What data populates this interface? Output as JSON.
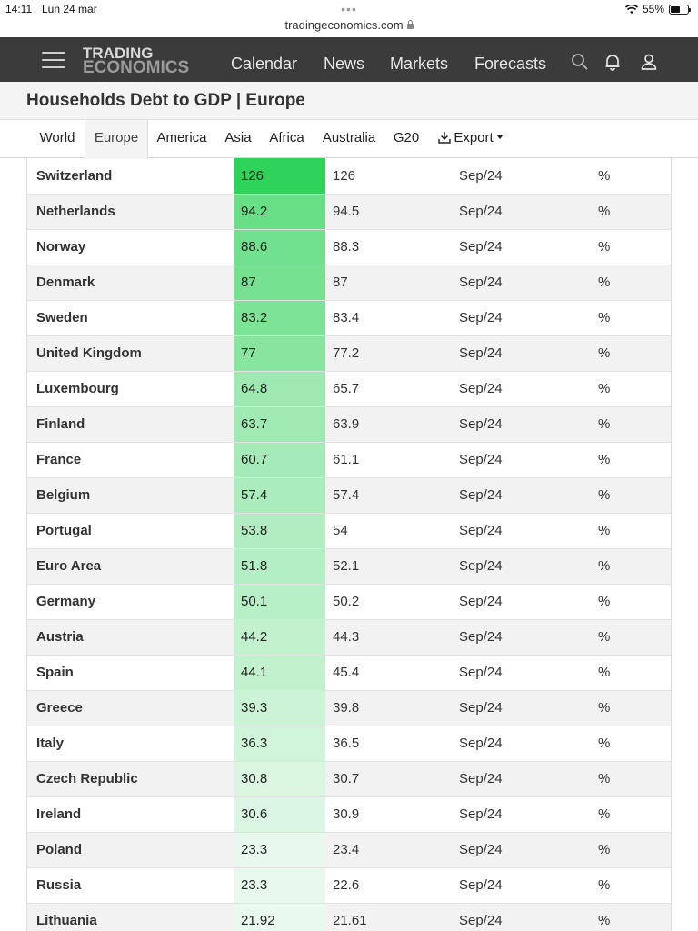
{
  "status_bar": {
    "time": "14:11",
    "date": "Lun 24 mar",
    "battery": "55%",
    "battery_level": 0.55
  },
  "browser": {
    "menu_dots": "•••",
    "url": "tradingeconomics.com"
  },
  "header": {
    "logo_line1": "TRADING",
    "logo_line2": "ECONOMICS",
    "nav": [
      "Calendar",
      "News",
      "Markets",
      "Forecasts"
    ],
    "icons": [
      "search-icon",
      "bell-icon",
      "user-icon"
    ]
  },
  "page": {
    "title": "Households Debt to GDP | Europe"
  },
  "tabs": {
    "items": [
      "World",
      "Europe",
      "America",
      "Asia",
      "Africa",
      "Australia",
      "G20"
    ],
    "active": "Europe",
    "export_label": "Export"
  },
  "colors": {
    "header_bg": "#3b3b3b",
    "heat_high": "#2fd35a",
    "heat_low": "#eaf9ee"
  },
  "table": {
    "rows": [
      {
        "country": "Switzerland",
        "last": "126",
        "previous": "126",
        "reference": "Sep/24",
        "unit": "%"
      },
      {
        "country": "Netherlands",
        "last": "94.2",
        "previous": "94.5",
        "reference": "Sep/24",
        "unit": "%"
      },
      {
        "country": "Norway",
        "last": "88.6",
        "previous": "88.3",
        "reference": "Sep/24",
        "unit": "%"
      },
      {
        "country": "Denmark",
        "last": "87",
        "previous": "87",
        "reference": "Sep/24",
        "unit": "%"
      },
      {
        "country": "Sweden",
        "last": "83.2",
        "previous": "83.4",
        "reference": "Sep/24",
        "unit": "%"
      },
      {
        "country": "United Kingdom",
        "last": "77",
        "previous": "77.2",
        "reference": "Sep/24",
        "unit": "%"
      },
      {
        "country": "Luxembourg",
        "last": "64.8",
        "previous": "65.7",
        "reference": "Sep/24",
        "unit": "%"
      },
      {
        "country": "Finland",
        "last": "63.7",
        "previous": "63.9",
        "reference": "Sep/24",
        "unit": "%"
      },
      {
        "country": "France",
        "last": "60.7",
        "previous": "61.1",
        "reference": "Sep/24",
        "unit": "%"
      },
      {
        "country": "Belgium",
        "last": "57.4",
        "previous": "57.4",
        "reference": "Sep/24",
        "unit": "%"
      },
      {
        "country": "Portugal",
        "last": "53.8",
        "previous": "54",
        "reference": "Sep/24",
        "unit": "%"
      },
      {
        "country": "Euro Area",
        "last": "51.8",
        "previous": "52.1",
        "reference": "Sep/24",
        "unit": "%"
      },
      {
        "country": "Germany",
        "last": "50.1",
        "previous": "50.2",
        "reference": "Sep/24",
        "unit": "%"
      },
      {
        "country": "Austria",
        "last": "44.2",
        "previous": "44.3",
        "reference": "Sep/24",
        "unit": "%"
      },
      {
        "country": "Spain",
        "last": "44.1",
        "previous": "45.4",
        "reference": "Sep/24",
        "unit": "%"
      },
      {
        "country": "Greece",
        "last": "39.3",
        "previous": "39.8",
        "reference": "Sep/24",
        "unit": "%"
      },
      {
        "country": "Italy",
        "last": "36.3",
        "previous": "36.5",
        "reference": "Sep/24",
        "unit": "%"
      },
      {
        "country": "Czech Republic",
        "last": "30.8",
        "previous": "30.7",
        "reference": "Sep/24",
        "unit": "%"
      },
      {
        "country": "Ireland",
        "last": "30.6",
        "previous": "30.9",
        "reference": "Sep/24",
        "unit": "%"
      },
      {
        "country": "Poland",
        "last": "23.3",
        "previous": "23.4",
        "reference": "Sep/24",
        "unit": "%"
      },
      {
        "country": "Russia",
        "last": "23.3",
        "previous": "22.6",
        "reference": "Sep/24",
        "unit": "%"
      },
      {
        "country": "Lithuania",
        "last": "21.92",
        "previous": "21.61",
        "reference": "Sep/24",
        "unit": "%"
      }
    ]
  }
}
